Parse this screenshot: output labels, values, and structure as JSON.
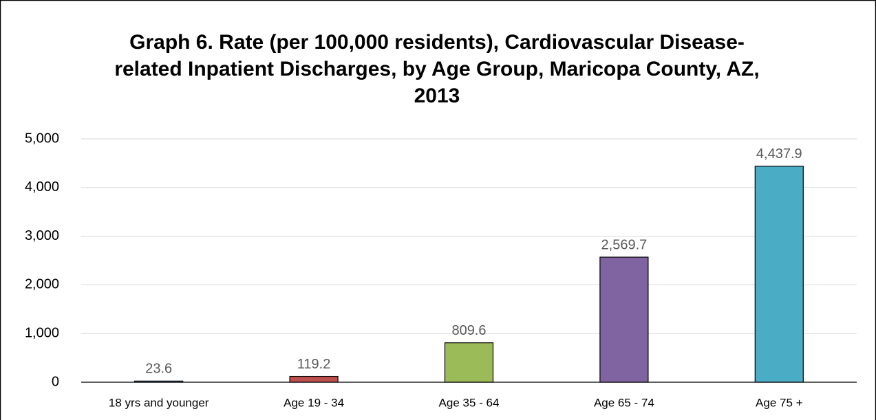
{
  "chart_data": {
    "type": "bar",
    "title": "Graph 6. Rate (per 100,000 residents), Cardiovascular Disease-related Inpatient Discharges, by Age Group, Maricopa County, AZ, 2013",
    "categories": [
      "18 yrs and younger",
      "Age 19 - 34",
      "Age 35 - 64",
      "Age 65 - 74",
      "Age 75 +"
    ],
    "values": [
      23.6,
      119.2,
      809.6,
      2569.7,
      4437.9
    ],
    "value_labels": [
      "23.6",
      "119.2",
      "809.6",
      "2,569.7",
      "4,437.9"
    ],
    "colors": [
      "#4f81bd",
      "#c0504d",
      "#9bbb59",
      "#8064a2",
      "#4bacc6"
    ],
    "ylim": [
      0,
      5000
    ],
    "yticks": [
      0,
      {
        "value": 1000,
        "label": "1,000"
      },
      {
        "value": 2000,
        "label": "2,000"
      },
      {
        "value": 3000,
        "label": "3,000"
      },
      {
        "value": 4000,
        "label": "4,000"
      },
      {
        "value": 5000,
        "label": "5,000"
      }
    ],
    "grid": true
  }
}
